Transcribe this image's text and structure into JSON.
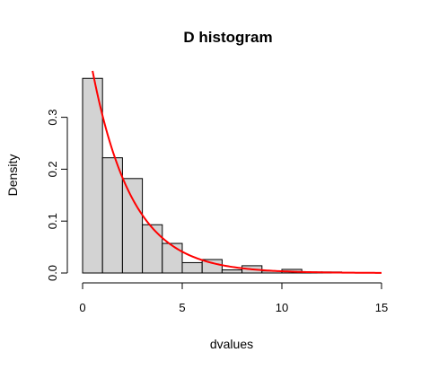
{
  "chart_data": {
    "type": "bar",
    "title": "D histogram",
    "xlabel": "dvalues",
    "ylabel": "Density",
    "xlim": [
      0,
      15
    ],
    "ylim": [
      0,
      0.4
    ],
    "x_ticks": [
      0,
      5,
      10,
      15
    ],
    "y_ticks": [
      0.0,
      0.1,
      0.2,
      0.3
    ],
    "x_tick_labels": [
      "0",
      "5",
      "10",
      "15"
    ],
    "y_tick_labels": [
      "0.0",
      "0.1",
      "0.2",
      "0.3"
    ],
    "bin_width": 1,
    "bins": [
      {
        "start": 0,
        "end": 1,
        "density": 0.375
      },
      {
        "start": 1,
        "end": 2,
        "density": 0.222
      },
      {
        "start": 2,
        "end": 3,
        "density": 0.182
      },
      {
        "start": 3,
        "end": 4,
        "density": 0.093
      },
      {
        "start": 4,
        "end": 5,
        "density": 0.057
      },
      {
        "start": 5,
        "end": 6,
        "density": 0.02
      },
      {
        "start": 6,
        "end": 7,
        "density": 0.026
      },
      {
        "start": 7,
        "end": 8,
        "density": 0.006
      },
      {
        "start": 8,
        "end": 9,
        "density": 0.014
      },
      {
        "start": 9,
        "end": 10,
        "density": 0.004
      },
      {
        "start": 10,
        "end": 11,
        "density": 0.007
      },
      {
        "start": 11,
        "end": 12,
        "density": 0.002
      },
      {
        "start": 12,
        "end": 13,
        "density": 0.002
      }
    ],
    "density_curve": {
      "type": "line",
      "color": "#ff0000",
      "function": "exponential",
      "rate": 0.5,
      "x_range": [
        0.5,
        15
      ]
    },
    "colors": {
      "bar_fill": "#d3d3d3",
      "bar_stroke": "#000000",
      "axis": "#000000",
      "curve": "#ff0000"
    },
    "grid": false,
    "legend": "none"
  }
}
